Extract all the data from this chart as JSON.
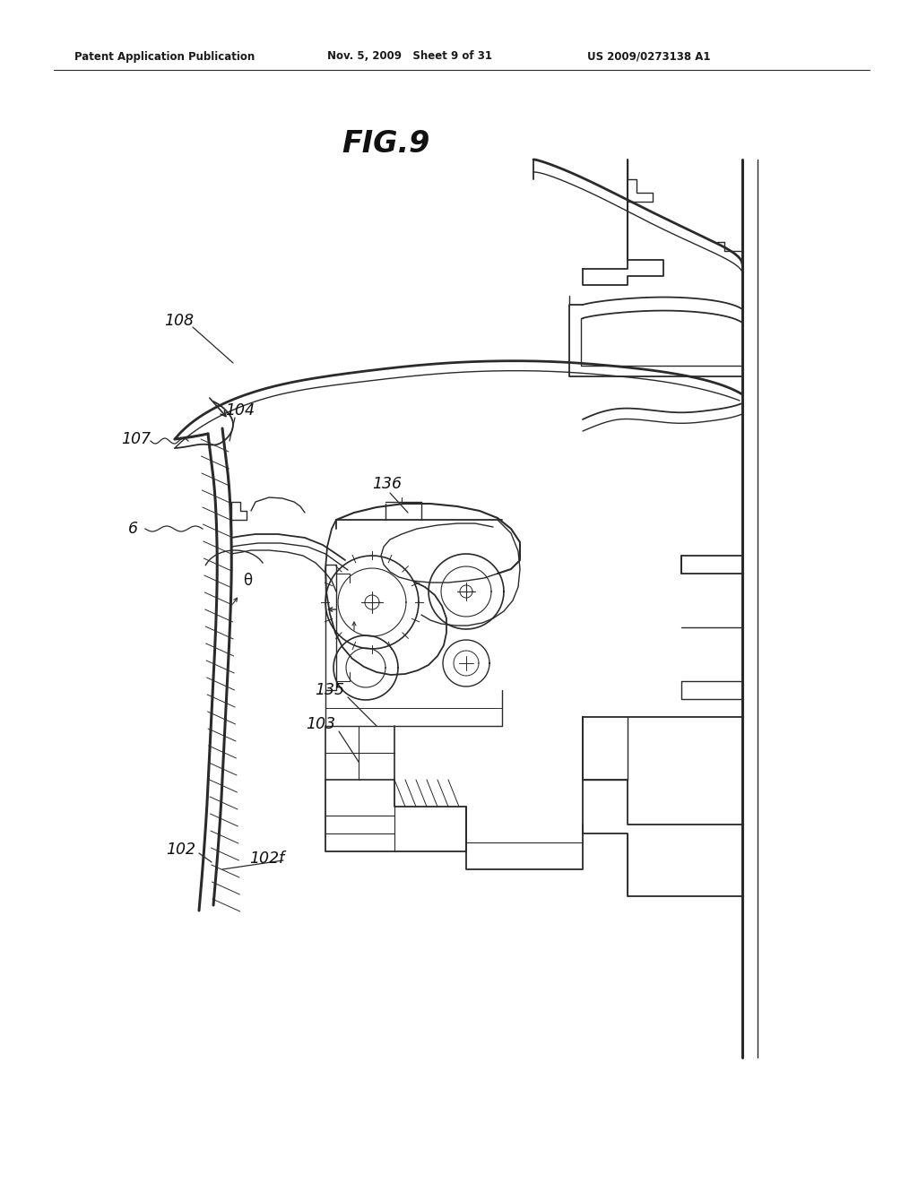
{
  "title": "FIG.9",
  "header_left": "Patent Application Publication",
  "header_mid": "Nov. 5, 2009   Sheet 9 of 31",
  "header_right": "US 2009/0273138 A1",
  "bg_color": "#ffffff",
  "line_color": "#2a2a2a",
  "fig_width": 10.24,
  "fig_height": 13.2,
  "dpi": 100
}
